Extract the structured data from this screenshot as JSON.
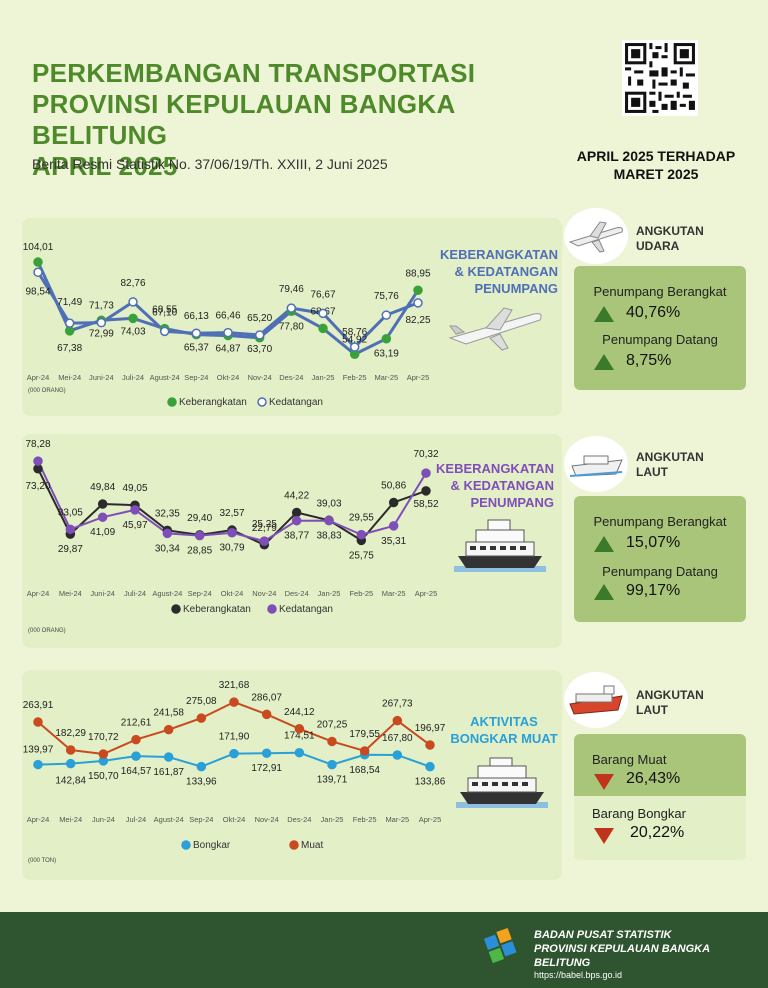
{
  "header": {
    "title_line1": "PERKEMBANGAN TRANSPORTASI",
    "title_line2": "PROVINSI KEPULAUAN BANGKA BELITUNG",
    "title_line3": "APRIL 2025",
    "subtitle": "Berita Resmi Statistik No. 37/06/19/Th. XXIII, 2 Juni 2025",
    "period_line1": "APRIL 2025 TERHADAP",
    "period_line2": "MARET 2025"
  },
  "colors": {
    "green": "#3aa13a",
    "purple": "#7f4fb8",
    "dark": "#2b2b2b",
    "blue": "#2aa0d8",
    "orange": "#c84a1e",
    "line_udara": "#4f6fb6",
    "up": "#3b7a2a",
    "down": "#c0341c"
  },
  "chart_data": [
    {
      "type": "line",
      "panel_title": [
        "KEBERANGKATAN",
        "& KEDATANGAN",
        "PENUMPANG"
      ],
      "unit_note": "(000 ORANG)",
      "categories": [
        "Apr-24",
        "Mei-24",
        "Juni-24",
        "Juli-24",
        "Agust-24",
        "Sep-24",
        "Okt-24",
        "Nov-24",
        "Des-24",
        "Jan-25",
        "Feb-25",
        "Mar-25",
        "Apr-25"
      ],
      "series": [
        {
          "name": "Keberangkatan",
          "values": [
            104.01,
            67.38,
            72.99,
            74.03,
            68.55,
            65.37,
            64.87,
            63.7,
            77.8,
            68.67,
            54.92,
            63.19,
            88.95
          ],
          "labels": [
            "104,01",
            "67,38",
            "72,99",
            "74,03",
            "68,55",
            "65,37",
            "64,87",
            "63,70",
            "77,80",
            "68,67",
            "54,92",
            "63,19",
            "88,95"
          ]
        },
        {
          "name": "Kedatangan",
          "values": [
            98.54,
            71.49,
            71.73,
            82.76,
            67.1,
            66.13,
            66.46,
            65.2,
            79.46,
            76.67,
            58.76,
            75.76,
            82.25
          ],
          "labels": [
            "98,54",
            "71,49",
            "71,73",
            "82,76",
            "67,10",
            "66,13",
            "66,46",
            "65,20",
            "79,46",
            "76,67",
            "58,76",
            "75,76",
            "82,25"
          ]
        }
      ]
    },
    {
      "type": "line",
      "panel_title": [
        "KEBERANGKATAN",
        "& KEDATANGAN",
        "PENUMPANG"
      ],
      "unit_note": "(000 ORANG)",
      "categories": [
        "Apr-24",
        "Mei-24",
        "Juni-24",
        "Juli-24",
        "Agust-24",
        "Sep-24",
        "Okt-24",
        "Nov-24",
        "Des-24",
        "Jan-25",
        "Feb-25",
        "Mar-25",
        "Apr-25"
      ],
      "series": [
        {
          "name": "Keberangkatan",
          "values": [
            73.2,
            29.87,
            49.84,
            49.05,
            32.35,
            29.4,
            32.57,
            22.79,
            44.22,
            39.03,
            25.75,
            50.86,
            58.52
          ],
          "labels": [
            "73,20",
            "29,87",
            "49,84",
            "49,05",
            "32,35",
            "29,40",
            "32,57",
            "22,79",
            "44,22",
            "39,03",
            "25,75",
            "50,86",
            "58,52"
          ]
        },
        {
          "name": "Kedatangan",
          "values": [
            78.28,
            33.05,
            41.09,
            45.97,
            30.34,
            28.85,
            30.79,
            25.25,
            38.77,
            38.83,
            29.55,
            35.31,
            70.32
          ],
          "labels": [
            "78,28",
            "33,05",
            "41,09",
            "45,97",
            "30,34",
            "28,85",
            "30,79",
            "25,25",
            "38,77",
            "38,83",
            "29,55",
            "35,31",
            "70,32"
          ]
        }
      ]
    },
    {
      "type": "line",
      "panel_title": [
        "AKTIVITAS",
        "BONGKAR MUAT"
      ],
      "unit_note": "(000 TON)",
      "categories": [
        "Apr-24",
        "Mei-24",
        "Jun-24",
        "Jul-24",
        "Agust-24",
        "Sep-24",
        "Okt-24",
        "Nov-24",
        "Des-24",
        "Jan-25",
        "Feb-25",
        "Mar-25",
        "Apr-25"
      ],
      "series": [
        {
          "name": "Bongkar",
          "values": [
            139.97,
            142.84,
            150.7,
            164.57,
            161.87,
            133.96,
            171.9,
            172.91,
            174.51,
            139.71,
            168.54,
            167.8,
            133.86
          ],
          "labels": [
            "139,97",
            "142,84",
            "150,70",
            "164,57",
            "161,87",
            "133,96",
            "171,90",
            "172,91",
            "174,51",
            "139,71",
            "168,54",
            "167,80",
            "133,86"
          ]
        },
        {
          "name": "Muat",
          "values": [
            263.91,
            182.29,
            170.72,
            212.61,
            241.58,
            275.08,
            321.68,
            286.07,
            244.12,
            207.25,
            179.55,
            267.73,
            196.97
          ],
          "labels": [
            "263,91",
            "182,29",
            "170,72",
            "212,61",
            "241,58",
            "275,08",
            "321,68",
            "286,07",
            "244,12",
            "207,25",
            "179,55",
            "267,73",
            "196,97"
          ]
        }
      ]
    }
  ],
  "sections": [
    {
      "category": [
        "ANGKUTAN",
        "UDARA"
      ],
      "icon": "airplane-icon",
      "stats": [
        {
          "label": "Penumpang Berangkat",
          "value": "40,76%",
          "direction": "up"
        },
        {
          "label": "Penumpang Datang",
          "value": "8,75%",
          "direction": "up"
        }
      ]
    },
    {
      "category": [
        "ANGKUTAN",
        "LAUT"
      ],
      "icon": "ship-icon",
      "stats": [
        {
          "label": "Penumpang Berangkat",
          "value": "15,07%",
          "direction": "up"
        },
        {
          "label": "Penumpang Datang",
          "value": "99,17%",
          "direction": "up"
        }
      ]
    },
    {
      "category": [
        "ANGKUTAN",
        "LAUT"
      ],
      "icon": "cargo-ship-icon",
      "stats": [
        {
          "label": "Barang Muat",
          "value": "26,43%",
          "direction": "down"
        },
        {
          "label": "Barang Bongkar",
          "value": "20,22%",
          "direction": "down"
        }
      ]
    }
  ],
  "footer": {
    "org_line1": "BADAN PUSAT STATISTIK",
    "org_line2": "PROVINSI KEPULAUAN BANGKA BELITUNG",
    "url": "https://babel.bps.go.id"
  }
}
